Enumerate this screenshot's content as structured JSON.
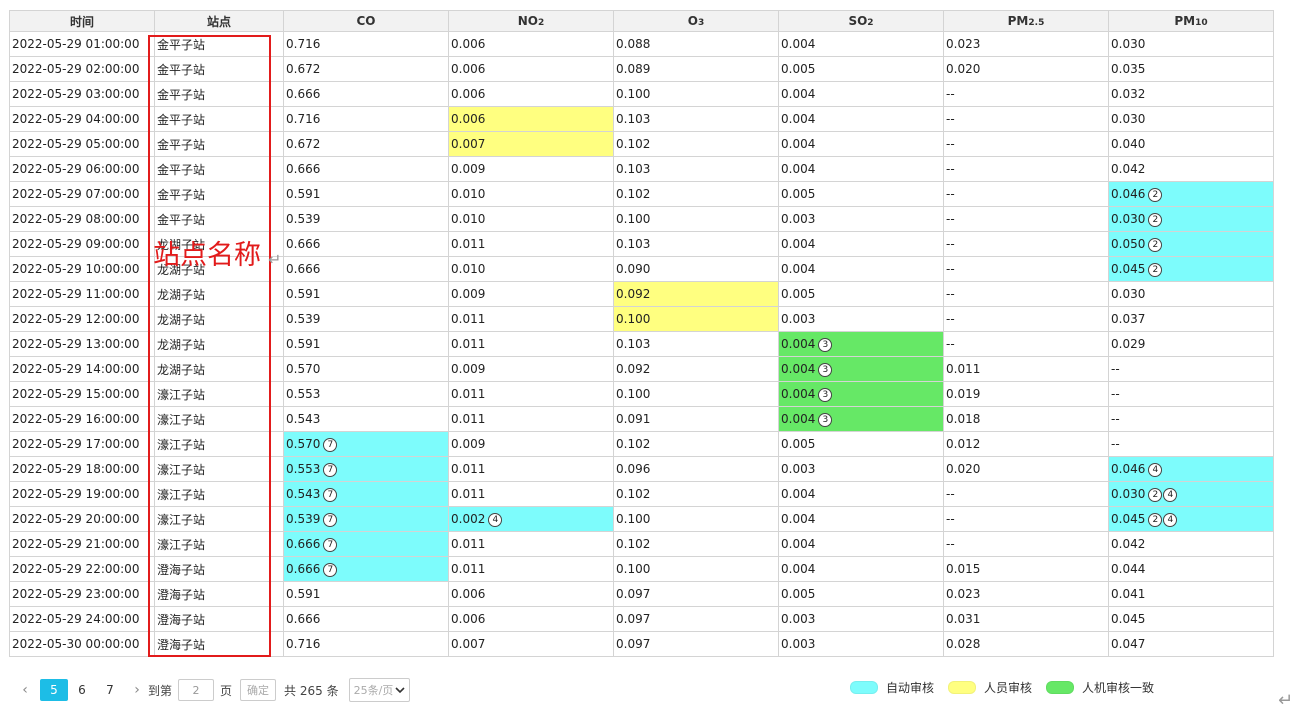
{
  "table": {
    "headers": {
      "time": "时间",
      "station": "站点",
      "co": "CO",
      "no2": {
        "base": "NO",
        "sub": "2"
      },
      "o3": {
        "base": "O",
        "sub": "3"
      },
      "so2": {
        "base": "SO",
        "sub": "2"
      },
      "pm25": {
        "base": "PM",
        "sub": "2.5"
      },
      "pm10": {
        "base": "PM",
        "sub": "10"
      }
    },
    "rows": [
      {
        "time": "2022-05-29 01:00:00",
        "station": "金平子站",
        "co": "0.716",
        "no2": "0.006",
        "o3": "0.088",
        "so2": "0.004",
        "pm25": "0.023",
        "pm10": "0.030"
      },
      {
        "time": "2022-05-29 02:00:00",
        "station": "金平子站",
        "co": "0.672",
        "no2": "0.006",
        "o3": "0.089",
        "so2": "0.005",
        "pm25": "0.020",
        "pm10": "0.035"
      },
      {
        "time": "2022-05-29 03:00:00",
        "station": "金平子站",
        "co": "0.666",
        "no2": "0.006",
        "o3": "0.100",
        "so2": "0.004",
        "pm25": "--",
        "pm10": "0.032"
      },
      {
        "time": "2022-05-29 04:00:00",
        "station": "金平子站",
        "co": "0.716",
        "no2": "0.006",
        "o3": "0.103",
        "so2": "0.004",
        "pm25": "--",
        "pm10": "0.030",
        "hl": {
          "no2": "person"
        }
      },
      {
        "time": "2022-05-29 05:00:00",
        "station": "金平子站",
        "co": "0.672",
        "no2": "0.007",
        "o3": "0.102",
        "so2": "0.004",
        "pm25": "--",
        "pm10": "0.040",
        "hl": {
          "no2": "person"
        }
      },
      {
        "time": "2022-05-29 06:00:00",
        "station": "金平子站",
        "co": "0.666",
        "no2": "0.009",
        "o3": "0.103",
        "so2": "0.004",
        "pm25": "--",
        "pm10": "0.042"
      },
      {
        "time": "2022-05-29 07:00:00",
        "station": "金平子站",
        "co": "0.591",
        "no2": "0.010",
        "o3": "0.102",
        "so2": "0.005",
        "pm25": "--",
        "pm10": "0.046",
        "hl": {
          "pm10": "auto"
        },
        "marks": {
          "pm10": [
            "②"
          ]
        }
      },
      {
        "time": "2022-05-29 08:00:00",
        "station": "金平子站",
        "co": "0.539",
        "no2": "0.010",
        "o3": "0.100",
        "so2": "0.003",
        "pm25": "--",
        "pm10": "0.030",
        "hl": {
          "pm10": "auto"
        },
        "marks": {
          "pm10": [
            "②"
          ]
        }
      },
      {
        "time": "2022-05-29 09:00:00",
        "station": "龙湖子站",
        "co": "0.666",
        "no2": "0.011",
        "o3": "0.103",
        "so2": "0.004",
        "pm25": "--",
        "pm10": "0.050",
        "hl": {
          "pm10": "auto"
        },
        "marks": {
          "pm10": [
            "②"
          ]
        }
      },
      {
        "time": "2022-05-29 10:00:00",
        "station": "龙湖子站",
        "co": "0.666",
        "no2": "0.010",
        "o3": "0.090",
        "so2": "0.004",
        "pm25": "--",
        "pm10": "0.045",
        "hl": {
          "pm10": "auto"
        },
        "marks": {
          "pm10": [
            "②"
          ]
        }
      },
      {
        "time": "2022-05-29 11:00:00",
        "station": "龙湖子站",
        "co": "0.591",
        "no2": "0.009",
        "o3": "0.092",
        "so2": "0.005",
        "pm25": "--",
        "pm10": "0.030",
        "hl": {
          "o3": "person"
        }
      },
      {
        "time": "2022-05-29 12:00:00",
        "station": "龙湖子站",
        "co": "0.539",
        "no2": "0.011",
        "o3": "0.100",
        "so2": "0.003",
        "pm25": "--",
        "pm10": "0.037",
        "hl": {
          "o3": "person"
        }
      },
      {
        "time": "2022-05-29 13:00:00",
        "station": "龙湖子站",
        "co": "0.591",
        "no2": "0.011",
        "o3": "0.103",
        "so2": "0.004",
        "pm25": "--",
        "pm10": "0.029",
        "hl": {
          "so2": "both"
        },
        "marks": {
          "so2": [
            "③"
          ]
        }
      },
      {
        "time": "2022-05-29 14:00:00",
        "station": "龙湖子站",
        "co": "0.570",
        "no2": "0.009",
        "o3": "0.092",
        "so2": "0.004",
        "pm25": "0.011",
        "pm10": "--",
        "hl": {
          "so2": "both"
        },
        "marks": {
          "so2": [
            "③"
          ]
        }
      },
      {
        "time": "2022-05-29 15:00:00",
        "station": "濠江子站",
        "co": "0.553",
        "no2": "0.011",
        "o3": "0.100",
        "so2": "0.004",
        "pm25": "0.019",
        "pm10": "--",
        "hl": {
          "so2": "both"
        },
        "marks": {
          "so2": [
            "③"
          ]
        }
      },
      {
        "time": "2022-05-29 16:00:00",
        "station": "濠江子站",
        "co": "0.543",
        "no2": "0.011",
        "o3": "0.091",
        "so2": "0.004",
        "pm25": "0.018",
        "pm10": "--",
        "hl": {
          "so2": "both"
        },
        "marks": {
          "so2": [
            "③"
          ]
        }
      },
      {
        "time": "2022-05-29 17:00:00",
        "station": "濠江子站",
        "co": "0.570",
        "no2": "0.009",
        "o3": "0.102",
        "so2": "0.005",
        "pm25": "0.012",
        "pm10": "--",
        "hl": {
          "co": "auto"
        },
        "marks": {
          "co": [
            "⑦"
          ]
        }
      },
      {
        "time": "2022-05-29 18:00:00",
        "station": "濠江子站",
        "co": "0.553",
        "no2": "0.011",
        "o3": "0.096",
        "so2": "0.003",
        "pm25": "0.020",
        "pm10": "0.046",
        "hl": {
          "co": "auto",
          "pm10": "auto"
        },
        "marks": {
          "co": [
            "⑦"
          ],
          "pm10": [
            "④"
          ]
        }
      },
      {
        "time": "2022-05-29 19:00:00",
        "station": "濠江子站",
        "co": "0.543",
        "no2": "0.011",
        "o3": "0.102",
        "so2": "0.004",
        "pm25": "--",
        "pm10": "0.030",
        "hl": {
          "co": "auto",
          "pm10": "auto"
        },
        "marks": {
          "co": [
            "⑦"
          ],
          "pm10": [
            "②",
            "④"
          ]
        }
      },
      {
        "time": "2022-05-29 20:00:00",
        "station": "濠江子站",
        "co": "0.539",
        "no2": "0.002",
        "o3": "0.100",
        "so2": "0.004",
        "pm25": "--",
        "pm10": "0.045",
        "hl": {
          "co": "auto",
          "no2": "auto",
          "pm10": "auto"
        },
        "marks": {
          "co": [
            "⑦"
          ],
          "no2": [
            "④"
          ],
          "pm10": [
            "②",
            "④"
          ]
        }
      },
      {
        "time": "2022-05-29 21:00:00",
        "station": "濠江子站",
        "co": "0.666",
        "no2": "0.011",
        "o3": "0.102",
        "so2": "0.004",
        "pm25": "--",
        "pm10": "0.042",
        "hl": {
          "co": "auto"
        },
        "marks": {
          "co": [
            "⑦"
          ]
        }
      },
      {
        "time": "2022-05-29 22:00:00",
        "station": "澄海子站",
        "co": "0.666",
        "no2": "0.011",
        "o3": "0.100",
        "so2": "0.004",
        "pm25": "0.015",
        "pm10": "0.044",
        "hl": {
          "co": "auto"
        },
        "marks": {
          "co": [
            "⑦"
          ]
        }
      },
      {
        "time": "2022-05-29 23:00:00",
        "station": "澄海子站",
        "co": "0.591",
        "no2": "0.006",
        "o3": "0.097",
        "so2": "0.005",
        "pm25": "0.023",
        "pm10": "0.041"
      },
      {
        "time": "2022-05-29 24:00:00",
        "station": "澄海子站",
        "co": "0.666",
        "no2": "0.006",
        "o3": "0.097",
        "so2": "0.003",
        "pm25": "0.031",
        "pm10": "0.045"
      },
      {
        "time": "2022-05-30 00:00:00",
        "station": "澄海子站",
        "co": "0.716",
        "no2": "0.007",
        "o3": "0.097",
        "so2": "0.003",
        "pm25": "0.028",
        "pm10": "0.047"
      }
    ]
  },
  "annotation": {
    "label": "站点名称",
    "color": "#e21b1b",
    "return_mark": "↵"
  },
  "pagination": {
    "prev_icon": "‹",
    "next_icon": "›",
    "pages": [
      "5",
      "6",
      "7"
    ],
    "current_page": "5",
    "goto_label": "到第",
    "page_input_value": "2",
    "page_unit": "页",
    "confirm_label": "确定",
    "total_text": "共 265 条",
    "page_size": "25条/页",
    "dropdown_icon": "chevron-down"
  },
  "legend": {
    "items": [
      {
        "key": "auto",
        "label": "自动审核",
        "color": "#7dfcfc"
      },
      {
        "key": "person",
        "label": "人员审核",
        "color": "#ffff80"
      },
      {
        "key": "both",
        "label": "人机审核一致",
        "color": "#66e866"
      }
    ]
  },
  "colors": {
    "auto": "#7dfcfc",
    "person": "#ffff80",
    "both": "#66e866",
    "pager_active": "#1dbde6"
  }
}
